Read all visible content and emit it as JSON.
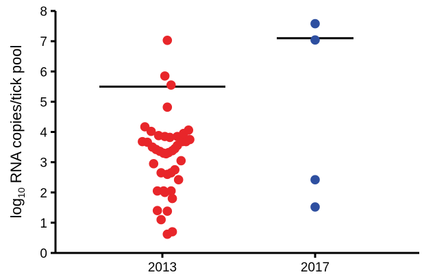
{
  "chart_data": {
    "type": "scatter",
    "title": "",
    "xlabel": "",
    "ylabel": {
      "prefix": "log",
      "subscript": "10",
      "suffix": " RNA copies/tick pool"
    },
    "ylim": [
      0,
      8
    ],
    "yticks": [
      "0",
      "1",
      "2",
      "3",
      "4",
      "5",
      "6",
      "7",
      "8"
    ],
    "categories": [
      "2013",
      "2017"
    ],
    "grid": false,
    "legend": "none",
    "series": [
      {
        "category": "2013",
        "color": "#e8262a",
        "median": 5.5,
        "points": [
          {
            "x": -0.16,
            "y": 3.68
          },
          {
            "x": -0.14,
            "y": 4.17
          },
          {
            "x": -0.12,
            "y": 3.66
          },
          {
            "x": -0.09,
            "y": 4.02
          },
          {
            "x": -0.08,
            "y": 3.5
          },
          {
            "x": -0.07,
            "y": 2.95
          },
          {
            "x": -0.05,
            "y": 3.42
          },
          {
            "x": -0.04,
            "y": 2.05
          },
          {
            "x": -0.04,
            "y": 1.4
          },
          {
            "x": -0.03,
            "y": 3.88
          },
          {
            "x": -0.02,
            "y": 3.36
          },
          {
            "x": -0.01,
            "y": 2.65
          },
          {
            "x": -0.01,
            "y": 1.1
          },
          {
            "x": 0.01,
            "y": 2.05
          },
          {
            "x": 0.01,
            "y": 3.3
          },
          {
            "x": 0.02,
            "y": 3.85
          },
          {
            "x": 0.02,
            "y": 5.85
          },
          {
            "x": 0.02,
            "y": 2.0
          },
          {
            "x": 0.03,
            "y": 3.28
          },
          {
            "x": 0.04,
            "y": 2.6
          },
          {
            "x": 0.04,
            "y": 7.03
          },
          {
            "x": 0.04,
            "y": 4.82
          },
          {
            "x": 0.04,
            "y": 1.38
          },
          {
            "x": 0.04,
            "y": 0.62
          },
          {
            "x": 0.05,
            "y": 3.32
          },
          {
            "x": 0.06,
            "y": 3.82
          },
          {
            "x": 0.07,
            "y": 5.55
          },
          {
            "x": 0.07,
            "y": 2.65
          },
          {
            "x": 0.07,
            "y": 2.05
          },
          {
            "x": 0.08,
            "y": 3.38
          },
          {
            "x": 0.08,
            "y": 1.8
          },
          {
            "x": 0.08,
            "y": 0.7
          },
          {
            "x": 0.1,
            "y": 3.45
          },
          {
            "x": 0.1,
            "y": 2.75
          },
          {
            "x": 0.12,
            "y": 3.85
          },
          {
            "x": 0.12,
            "y": 3.55
          },
          {
            "x": 0.13,
            "y": 2.42
          },
          {
            "x": 0.15,
            "y": 3.05
          },
          {
            "x": 0.16,
            "y": 3.68
          },
          {
            "x": 0.17,
            "y": 3.95
          },
          {
            "x": 0.19,
            "y": 3.68
          },
          {
            "x": 0.21,
            "y": 4.06
          },
          {
            "x": 0.22,
            "y": 3.75
          }
        ]
      },
      {
        "category": "2017",
        "color": "#2e4fa0",
        "median": 7.1,
        "points": [
          {
            "x": 0.0,
            "y": 7.58
          },
          {
            "x": 0.0,
            "y": 7.04
          },
          {
            "x": 0.0,
            "y": 2.42
          },
          {
            "x": 0.0,
            "y": 1.52
          }
        ]
      }
    ]
  }
}
